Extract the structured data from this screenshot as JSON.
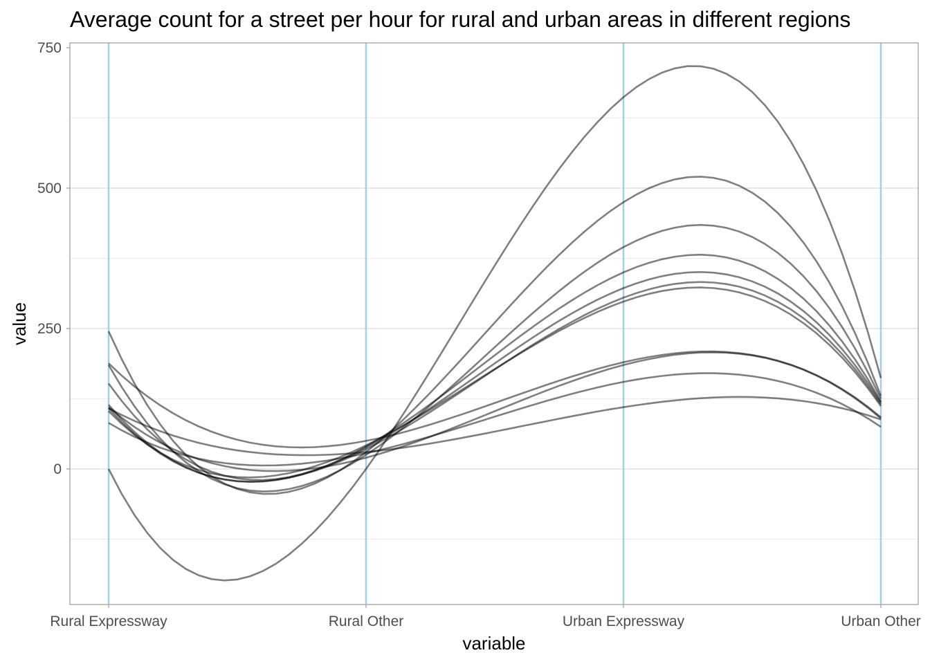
{
  "chart_data": {
    "type": "line",
    "subtype": "parallel-coordinates",
    "title": "Average count for a street per hour for rural and urban areas in different regions",
    "xlabel": "variable",
    "ylabel": "value",
    "categories": [
      "Rural Expressway",
      "Rural Other",
      "Urban Expressway",
      "Urban Other"
    ],
    "ylim": [
      -240,
      755
    ],
    "yticks": [
      0,
      250,
      500,
      750
    ],
    "ytick_labels": [
      "0",
      "250",
      "500",
      "750"
    ],
    "grid": true,
    "legend": "none",
    "colors": {
      "series": "#000000",
      "axis_lines": "#a6cee3"
    },
    "series": [
      {
        "values": [
          0,
          0,
          662,
          162
        ]
      },
      {
        "values": [
          245,
          30,
          475,
          130
        ]
      },
      {
        "values": [
          185,
          25,
          395,
          125
        ]
      },
      {
        "values": [
          152,
          40,
          350,
          120
        ]
      },
      {
        "values": [
          114,
          38,
          322,
          118
        ]
      },
      {
        "values": [
          108,
          35,
          305,
          115
        ]
      },
      {
        "values": [
          103,
          42,
          298,
          112
        ]
      },
      {
        "values": [
          188,
          50,
          190,
          92
        ]
      },
      {
        "values": [
          110,
          20,
          185,
          90
        ]
      },
      {
        "values": [
          82,
          28,
          155,
          75
        ]
      },
      {
        "values": [
          108,
          30,
          110,
          88
        ]
      }
    ]
  }
}
